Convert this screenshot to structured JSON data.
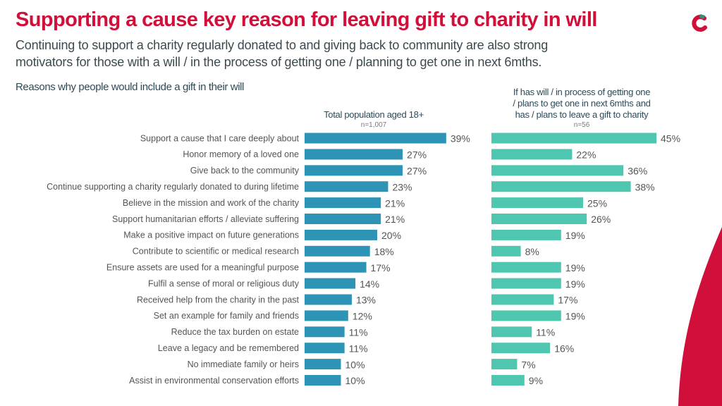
{
  "header": {
    "title": "Supporting a cause key reason for leaving gift to charity in will",
    "subtitle_line1": "Continuing to support a charity regularly donated to and giving back to community are also strong",
    "subtitle_line2": "motivators for those with a will / in the process of getting one / planning to get one in next 6mths.",
    "section_label": "Reasons why people would include a gift in their will",
    "logo_icon": "c-logo-icon"
  },
  "colors": {
    "title": "#d0103a",
    "series_total": "#2e94b5",
    "series_will": "#4fc7b0",
    "accent_red": "#d0103a",
    "logo_teal": "#3a8a7c"
  },
  "chart_data": {
    "type": "bar",
    "orientation": "horizontal",
    "title": "Reasons why people would include a gift in their will",
    "xlabel": "",
    "ylabel": "",
    "xlim": [
      0,
      50
    ],
    "grid": false,
    "value_format": "percent",
    "categories": [
      "Support a cause that I care deeply about",
      "Honor memory of a loved one",
      "Give back to the community",
      "Continue supporting a charity regularly donated to during lifetime",
      "Believe in the mission and work of the charity",
      "Support humanitarian efforts / alleviate suffering",
      "Make a positive impact on future generations",
      "Contribute to scientific or medical research",
      "Ensure assets are used for a meaningful purpose",
      "Fulfil a sense of moral or religious duty",
      "Received help from the charity in the past",
      "Set an example for family and friends",
      "Reduce the tax burden on estate",
      "Leave a legacy and be remembered",
      "No immediate family or heirs",
      "Assist in environmental conservation efforts"
    ],
    "series": [
      {
        "name": "Total population aged 18+",
        "n_label": "n=1,007",
        "values": [
          39,
          27,
          27,
          23,
          21,
          21,
          20,
          18,
          17,
          14,
          13,
          12,
          11,
          11,
          10,
          10
        ]
      },
      {
        "name": "If has will / in process of getting one / plans to get one in next 6mths and has / plans to leave a gift to charity",
        "name_lines": [
          "If has will / in process of getting one",
          "/ plans to get one in next 6mths and",
          "has / plans to leave a gift to charity"
        ],
        "n_label": "n=56",
        "values": [
          45,
          22,
          36,
          38,
          25,
          26,
          19,
          8,
          19,
          19,
          17,
          19,
          11,
          16,
          7,
          9
        ]
      }
    ]
  }
}
